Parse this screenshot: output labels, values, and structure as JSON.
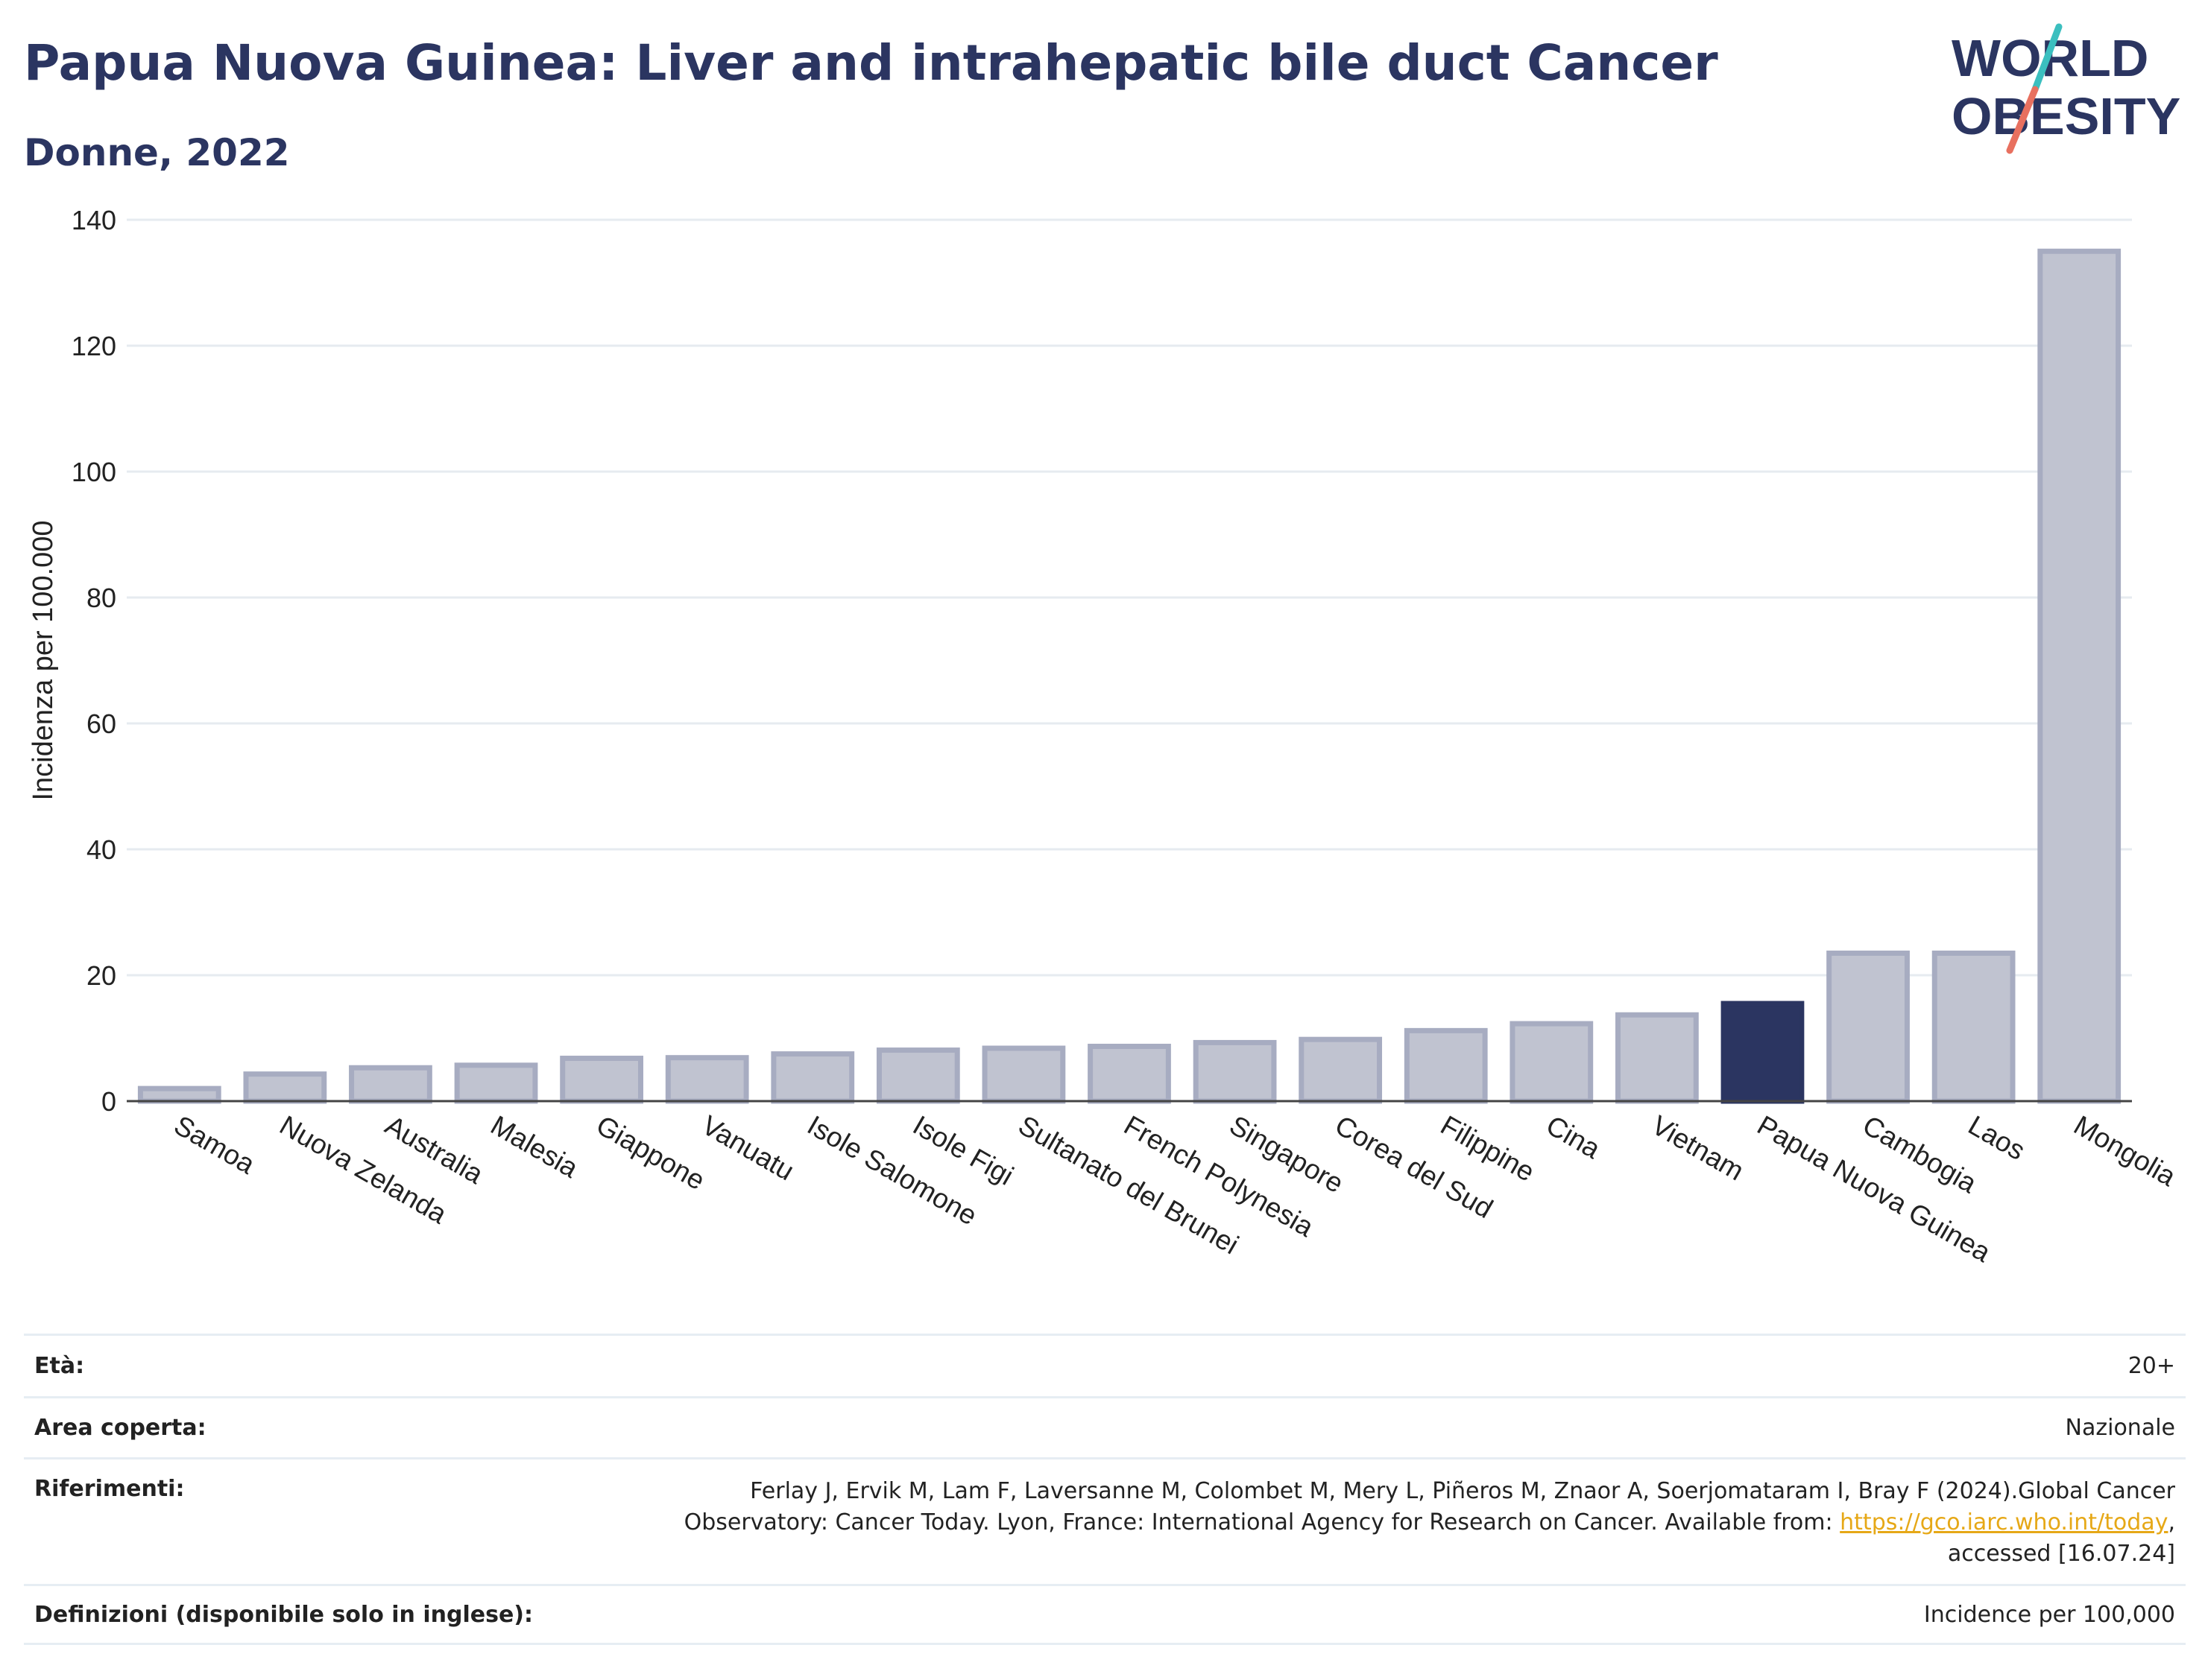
{
  "header": {
    "title": "Papua Nuova Guinea: Liver and intrahepatic bile duct Cancer",
    "subtitle": "Donne, 2022",
    "logo_text": [
      "WORLD",
      "OBESITY"
    ]
  },
  "colors": {
    "title": "#2b3561",
    "bar": "#c0c3d0",
    "bar_border": "#a7acc1",
    "highlight": "#2b3561",
    "link": "#e6a817",
    "logo_teal": "#3bbfbf",
    "logo_coral": "#e8705f"
  },
  "chart_data": {
    "type": "bar",
    "categories": [
      "Samoa",
      "Nuova Zelanda",
      "Australia",
      "Malesia",
      "Giappone",
      "Vanuatu",
      "Isole Salomone",
      "Isole Figi",
      "Sultanato del Brunei",
      "French Polynesia",
      "Singapore",
      "Corea del Sud",
      "Filippine",
      "Cina",
      "Vietnam",
      "Papua Nuova Guinea",
      "Cambogia",
      "Laos",
      "Mongolia"
    ],
    "values": [
      2.0,
      4.3,
      5.3,
      5.7,
      6.8,
      6.9,
      7.5,
      8.1,
      8.4,
      8.7,
      9.3,
      9.8,
      11.2,
      12.3,
      13.7,
      15.5,
      23.5,
      23.5,
      135.0
    ],
    "highlight": "Papua Nuova Guinea",
    "ylabel": "Incidenza per 100.000",
    "xlabel": "",
    "ylim": [
      0,
      140
    ],
    "yticks": [
      0,
      20,
      40,
      60,
      80,
      100,
      120,
      140
    ],
    "grid": true
  },
  "meta": {
    "age_label": "Età:",
    "age_value": "20+",
    "area_label": "Area coperta:",
    "area_value": "Nazionale",
    "ref_label": "Riferimenti:",
    "ref_line1": "Ferlay J, Ervik M, Lam F, Laversanne M, Colombet M, Mery L, Piñeros M, Znaor A, Soerjomataram I, Bray F (2024).Global Cancer",
    "ref_line2": "Observatory: Cancer Today. Lyon, France: International Agency for Research on Cancer. Available from: ",
    "ref_link": "https://gco.iarc.who.int/today",
    "ref_line2_end": ",",
    "ref_line3": "accessed [16.07.24]",
    "def_label": "Definizioni (disponibile solo in inglese):",
    "def_value": "Incidence per 100,000"
  }
}
